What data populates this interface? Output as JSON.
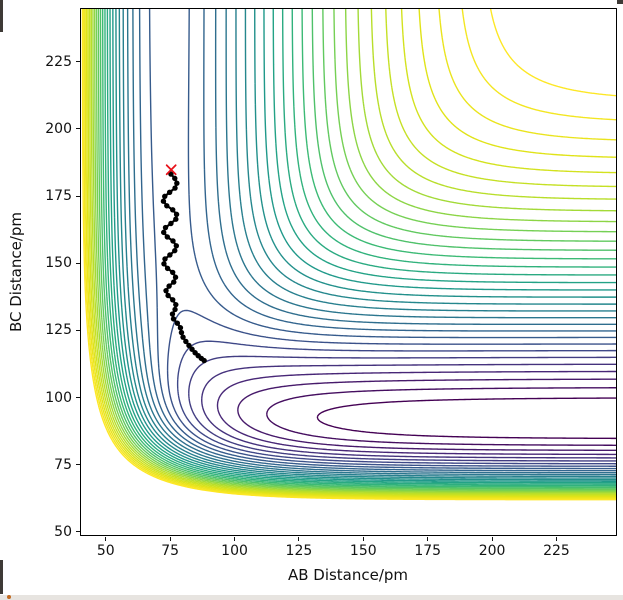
{
  "chart_data": {
    "type": "contour",
    "title": "",
    "xlabel": "AB Distance/pm",
    "ylabel": "BC Distance/pm",
    "xlim": [
      40,
      248.5
    ],
    "ylim": [
      48.5,
      245
    ],
    "xticks": [
      50,
      75,
      100,
      125,
      150,
      175,
      200,
      225
    ],
    "yticks": [
      50,
      75,
      100,
      125,
      150,
      175,
      200,
      225
    ],
    "grid": false,
    "legend": "none",
    "colormap": {
      "name": "viridis",
      "stops": [
        [
          0.0,
          68,
          1,
          84
        ],
        [
          0.1,
          72,
          40,
          120
        ],
        [
          0.2,
          62,
          74,
          137
        ],
        [
          0.3,
          49,
          104,
          142
        ],
        [
          0.4,
          38,
          130,
          142
        ],
        [
          0.5,
          31,
          158,
          137
        ],
        [
          0.6,
          53,
          183,
          121
        ],
        [
          0.7,
          110,
          206,
          88
        ],
        [
          0.8,
          181,
          222,
          43
        ],
        [
          0.9,
          223,
          227,
          24
        ],
        [
          1.0,
          253,
          231,
          37
        ]
      ]
    },
    "levels": {
      "min": -5.95,
      "max": -0.85,
      "count": 32
    },
    "potential": {
      "model": "LEPS",
      "sato": 0.167,
      "pairs": {
        "AB": {
          "D": 4.7466,
          "beta": 0.01942,
          "r0": 74.1
        },
        "BC": {
          "D": 6.1229,
          "beta": 0.022087,
          "r0": 91.7
        },
        "AC": {
          "D": 6.1229,
          "beta": 0.022087,
          "r0": 91.7
        }
      }
    },
    "trajectory": {
      "color": "#000000",
      "line_width": 2.2,
      "marker_radius": 2.7,
      "points": [
        [
          75.3,
          183.2
        ],
        [
          76.8,
          181.6
        ],
        [
          77.6,
          179.8
        ],
        [
          76.9,
          178.0
        ],
        [
          74.8,
          176.4
        ],
        [
          72.9,
          174.9
        ],
        [
          72.4,
          173.1
        ],
        [
          73.7,
          171.4
        ],
        [
          76.0,
          169.9
        ],
        [
          77.5,
          168.2
        ],
        [
          77.2,
          166.4
        ],
        [
          75.3,
          164.8
        ],
        [
          73.2,
          163.3
        ],
        [
          72.5,
          161.5
        ],
        [
          73.9,
          159.8
        ],
        [
          76.1,
          158.3
        ],
        [
          77.4,
          156.5
        ],
        [
          76.8,
          154.7
        ],
        [
          74.9,
          153.1
        ],
        [
          73.0,
          151.6
        ],
        [
          72.6,
          149.8
        ],
        [
          74.0,
          148.1
        ],
        [
          76.0,
          146.6
        ],
        [
          77.1,
          144.8
        ],
        [
          76.4,
          143.0
        ],
        [
          74.6,
          141.5
        ],
        [
          73.4,
          139.8
        ],
        [
          74.2,
          138.0
        ],
        [
          76.0,
          136.4
        ],
        [
          77.2,
          134.6
        ],
        [
          76.9,
          132.8
        ],
        [
          75.9,
          131.1
        ],
        [
          76.3,
          129.3
        ],
        [
          77.8,
          127.7
        ],
        [
          79.0,
          126.0
        ],
        [
          79.4,
          124.2
        ],
        [
          80.0,
          122.5
        ],
        [
          81.1,
          120.9
        ],
        [
          82.3,
          119.4
        ],
        [
          83.5,
          118.0
        ],
        [
          84.7,
          116.7
        ],
        [
          85.9,
          115.6
        ],
        [
          87.1,
          114.6
        ],
        [
          88.2,
          113.8
        ]
      ]
    },
    "start_marker": {
      "symbol": "x",
      "color": "#e8111a",
      "x": 75.4,
      "y": 184.8,
      "size": 4.5
    }
  }
}
